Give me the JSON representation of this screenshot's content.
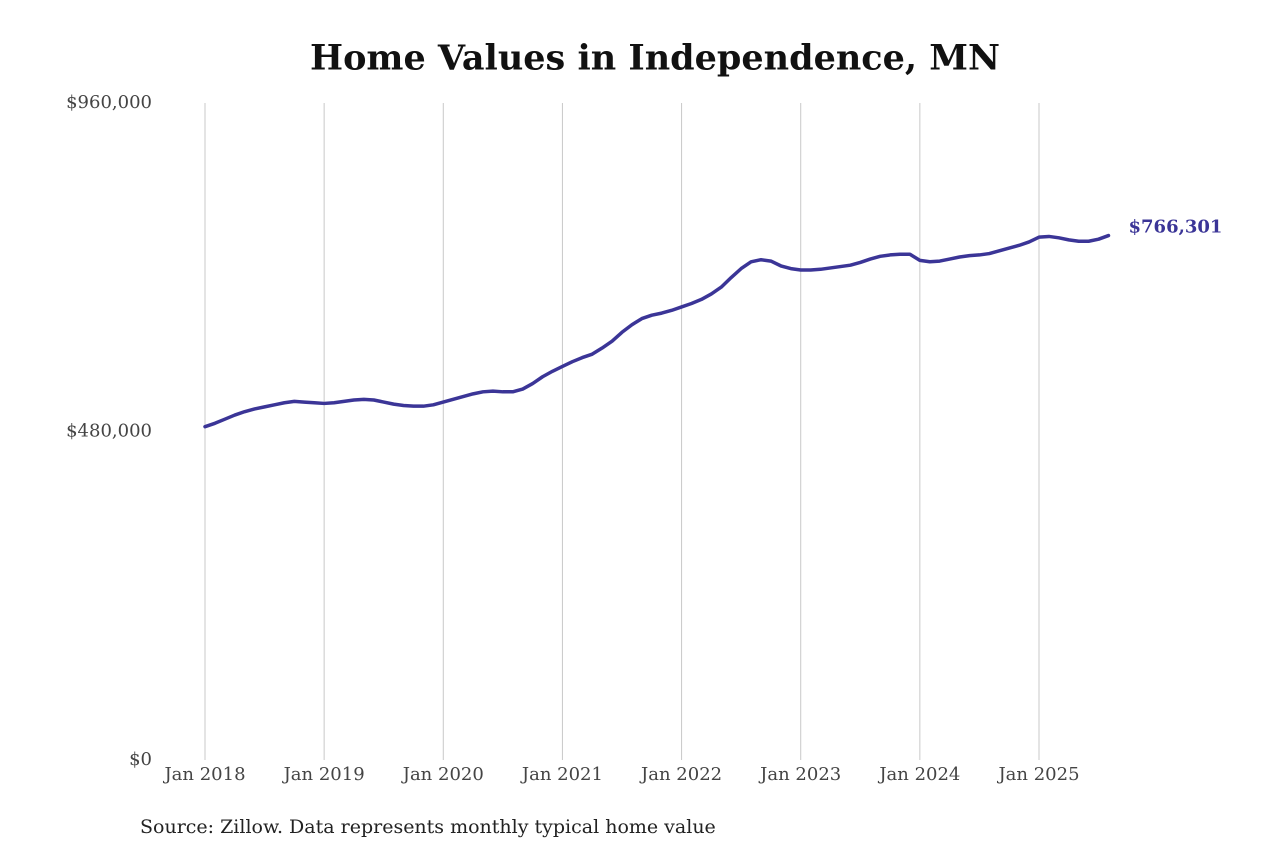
{
  "chart_data": {
    "type": "line",
    "title": "Home Values in Independence, MN",
    "source": "Source: Zillow. Data represents monthly typical home value",
    "x": [
      "Jan 2018",
      "Feb 2018",
      "Mar 2018",
      "Apr 2018",
      "May 2018",
      "Jun 2018",
      "Jul 2018",
      "Aug 2018",
      "Sep 2018",
      "Oct 2018",
      "Nov 2018",
      "Dec 2018",
      "Jan 2019",
      "Feb 2019",
      "Mar 2019",
      "Apr 2019",
      "May 2019",
      "Jun 2019",
      "Jul 2019",
      "Aug 2019",
      "Sep 2019",
      "Oct 2019",
      "Nov 2019",
      "Dec 2019",
      "Jan 2020",
      "Feb 2020",
      "Mar 2020",
      "Apr 2020",
      "May 2020",
      "Jun 2020",
      "Jul 2020",
      "Aug 2020",
      "Sep 2020",
      "Oct 2020",
      "Nov 2020",
      "Dec 2020",
      "Jan 2021",
      "Feb 2021",
      "Mar 2021",
      "Apr 2021",
      "May 2021",
      "Jun 2021",
      "Jul 2021",
      "Aug 2021",
      "Sep 2021",
      "Oct 2021",
      "Nov 2021",
      "Dec 2021",
      "Jan 2022",
      "Feb 2022",
      "Mar 2022",
      "Apr 2022",
      "May 2022",
      "Jun 2022",
      "Jul 2022",
      "Aug 2022",
      "Sep 2022",
      "Oct 2022",
      "Nov 2022",
      "Dec 2022",
      "Jan 2023",
      "Feb 2023",
      "Mar 2023",
      "Apr 2023",
      "May 2023",
      "Jun 2023",
      "Jul 2023",
      "Aug 2023",
      "Sep 2023",
      "Oct 2023",
      "Nov 2023",
      "Dec 2023",
      "Jan 2024",
      "Feb 2024",
      "Mar 2024",
      "Apr 2024",
      "May 2024",
      "Jun 2024",
      "Jul 2024",
      "Aug 2024",
      "Sep 2024",
      "Oct 2024",
      "Nov 2024",
      "Dec 2024",
      "Jan 2025",
      "Feb 2025",
      "Mar 2025",
      "Apr 2025",
      "May 2025",
      "Jun 2025",
      "Jul 2025",
      "Aug 2025"
    ],
    "series": [
      {
        "name": "Typical home value",
        "color": "#3b3597",
        "values": [
          487000,
          492000,
          498000,
          504000,
          509000,
          513000,
          516000,
          519000,
          522000,
          524000,
          523000,
          522000,
          521000,
          522000,
          524000,
          526000,
          527000,
          526000,
          523000,
          520000,
          518000,
          517000,
          517000,
          519000,
          523000,
          527000,
          531000,
          535000,
          538000,
          539000,
          538000,
          538000,
          542000,
          550000,
          560000,
          568000,
          575000,
          582000,
          588000,
          593000,
          602000,
          612000,
          625000,
          636000,
          645000,
          650000,
          653000,
          657000,
          662000,
          667000,
          673000,
          681000,
          691000,
          705000,
          718000,
          728000,
          731000,
          729000,
          722000,
          718000,
          716000,
          716000,
          717000,
          719000,
          721000,
          723000,
          727000,
          732000,
          736000,
          738000,
          739000,
          739000,
          730000,
          728000,
          729000,
          732000,
          735000,
          737000,
          738000,
          740000,
          744000,
          748000,
          752000,
          757000,
          764000,
          765000,
          763000,
          760000,
          758000,
          758000,
          761000,
          766301
        ],
        "value_labels": [
          null,
          null,
          null,
          null,
          null,
          null,
          null,
          null,
          null,
          null,
          null,
          null,
          null,
          null,
          null,
          null,
          null,
          null,
          null,
          null,
          null,
          null,
          null,
          null,
          null,
          null,
          null,
          null,
          null,
          null,
          null,
          null,
          null,
          null,
          null,
          null,
          null,
          null,
          null,
          null,
          null,
          null,
          null,
          null,
          null,
          null,
          null,
          null,
          null,
          null,
          null,
          null,
          null,
          null,
          null,
          null,
          null,
          null,
          null,
          null,
          null,
          null,
          null,
          null,
          null,
          null,
          null,
          null,
          null,
          null,
          null,
          null,
          null,
          null,
          null,
          null,
          null,
          null,
          null,
          null,
          null,
          null,
          null,
          null,
          null,
          null,
          null,
          null,
          null,
          null,
          null,
          "$766,301"
        ]
      }
    ],
    "ylim": [
      0,
      960000
    ],
    "yticks": [
      {
        "value": 0,
        "label": "$0"
      },
      {
        "value": 480000,
        "label": "$480,000"
      },
      {
        "value": 960000,
        "label": "$960,000"
      }
    ],
    "xticks": [
      "Jan 2018",
      "Jan 2019",
      "Jan 2020",
      "Jan 2021",
      "Jan 2022",
      "Jan 2023",
      "Jan 2024",
      "Jan 2025"
    ],
    "grid": true
  }
}
